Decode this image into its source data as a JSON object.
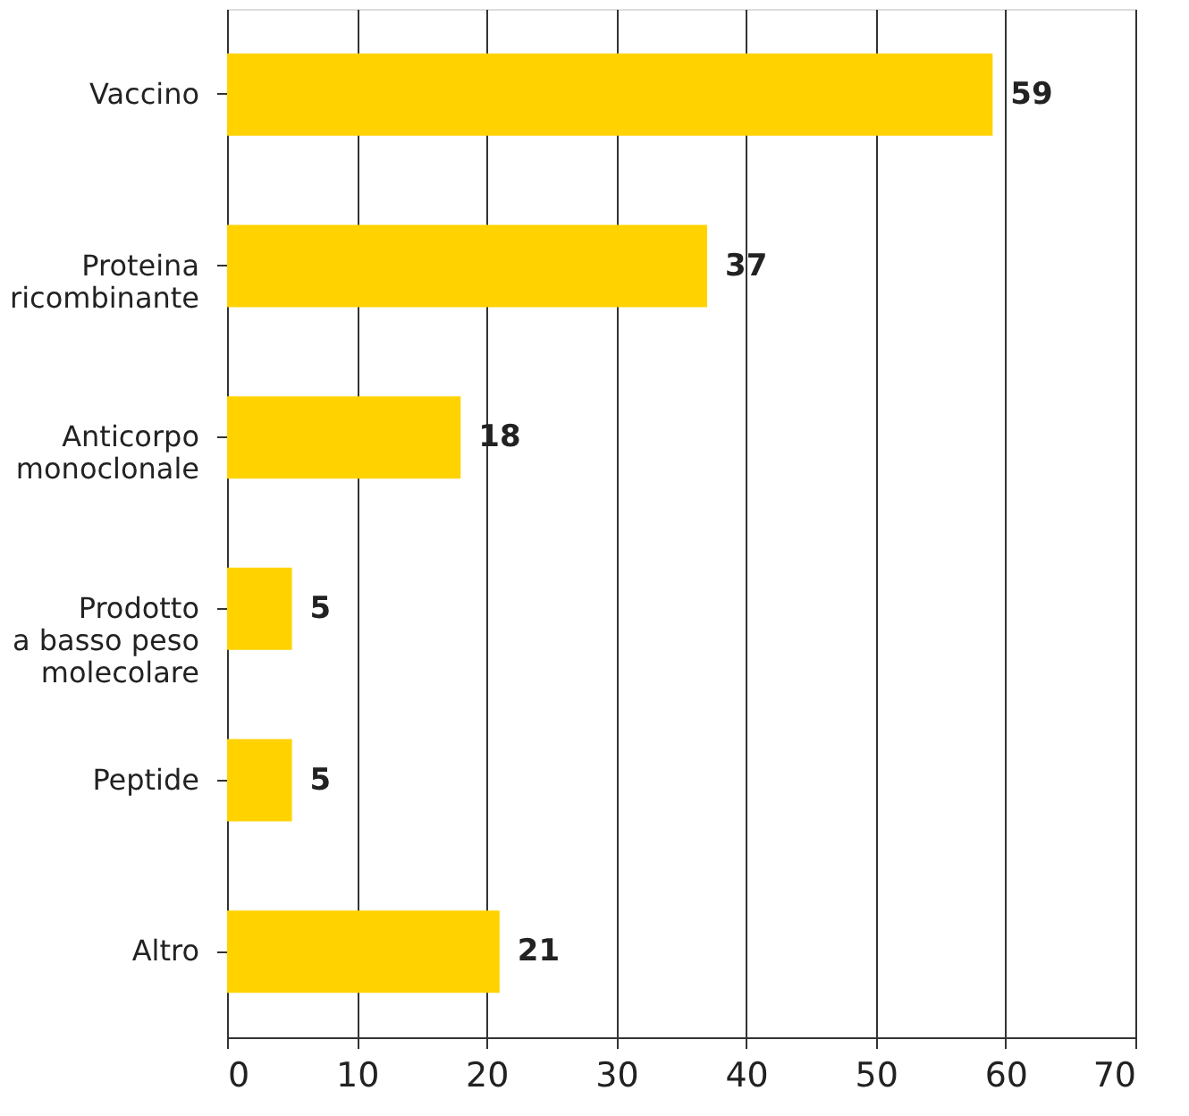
{
  "chart_data": {
    "type": "bar",
    "orientation": "horizontal",
    "categories": [
      "Vaccino",
      "Proteina\nricombinante",
      "Anticorpo\nmonoclonale",
      "Prodotto\na basso peso\nmolecolare",
      "Peptide",
      "Altro"
    ],
    "values": [
      59,
      37,
      18,
      5,
      5,
      21
    ],
    "color": "#ffd200",
    "xlim": [
      0,
      70
    ],
    "xticks": [
      0,
      10,
      20,
      30,
      40,
      50,
      60,
      70
    ],
    "grid": "x",
    "data_labels": true
  }
}
